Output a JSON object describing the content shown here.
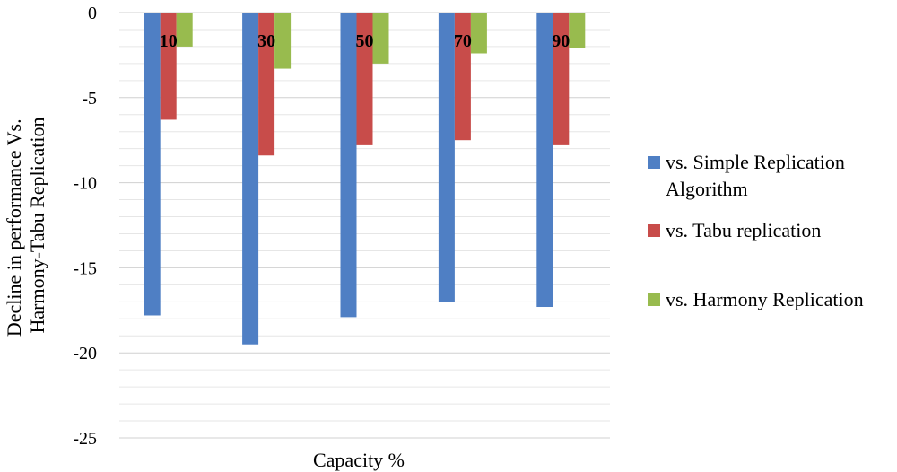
{
  "chart_data": {
    "type": "bar",
    "categories": [
      "10",
      "30",
      "50",
      "70",
      "90"
    ],
    "series": [
      {
        "name": "vs. Simple Replication Algorithm",
        "legend_lines": [
          "vs. Simple Replication",
          "Algorithm"
        ],
        "color": "#4f7fc4",
        "values": [
          -17.8,
          -19.5,
          -17.9,
          -17.0,
          -17.3
        ]
      },
      {
        "name": "vs. Tabu replication",
        "legend_lines": [
          "vs. Tabu replication"
        ],
        "color": "#c84c4a",
        "values": [
          -6.3,
          -8.4,
          -7.8,
          -7.5,
          -7.8
        ]
      },
      {
        "name": "vs. Harmony Replication",
        "legend_lines": [
          "vs. Harmony Replication"
        ],
        "color": "#98bb4e",
        "values": [
          -2.0,
          -3.3,
          -3.0,
          -2.4,
          -2.1
        ]
      }
    ],
    "ylim": [
      -25,
      0
    ],
    "yticks": [
      0,
      -5,
      -10,
      -15,
      -20,
      -25
    ],
    "minor_gridlines": true,
    "xlabel": "Capacity %",
    "ylabel_lines": [
      "Decline in performance Vs.",
      "Harmony-Tabu Replication"
    ],
    "legend_position": "right"
  }
}
